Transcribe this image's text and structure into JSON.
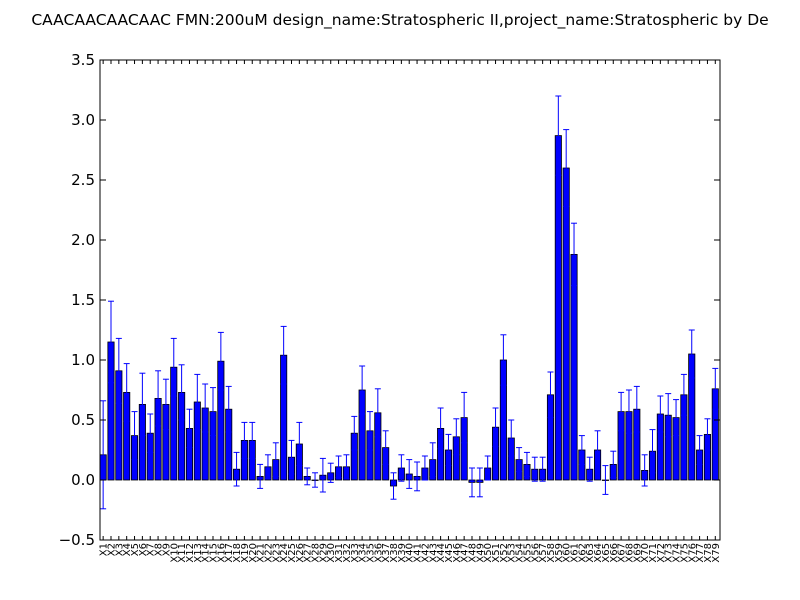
{
  "chart_data": {
    "type": "bar",
    "title": "CAACAACAACAAC  FMN:200uM  design_name:Stratospheric II,project_name:Stratospheric by De",
    "xlabel": "",
    "ylabel": "",
    "ylim": [
      -0.5,
      3.5
    ],
    "yticks": [
      "3.5",
      "3.0",
      "2.5",
      "2.0",
      "1.5",
      "1.0",
      "0.5",
      "0.0",
      "−0.5"
    ],
    "ytick_values": [
      3.5,
      3.0,
      2.5,
      2.0,
      1.5,
      1.0,
      0.5,
      0.0,
      -0.5
    ],
    "grid": false,
    "bar_color": "#0000ff",
    "error_color": "#0000ff",
    "categories": [
      "X1",
      "X2",
      "X3",
      "X4",
      "X5",
      "X6",
      "X7",
      "X8",
      "X9",
      "X10",
      "X11",
      "X12",
      "X13",
      "X14",
      "X15",
      "X16",
      "X17",
      "X18",
      "X19",
      "X20",
      "X21",
      "X22",
      "X23",
      "X24",
      "X25",
      "X26",
      "X27",
      "X28",
      "X29",
      "X30",
      "X31",
      "X32",
      "X33",
      "X34",
      "X35",
      "X36",
      "X37",
      "X38",
      "X39",
      "X40",
      "X41",
      "X42",
      "X43",
      "X44",
      "X45",
      "X46",
      "X47",
      "X48",
      "X49",
      "X50",
      "X51",
      "X52",
      "X53",
      "X54",
      "X55",
      "X56",
      "X57",
      "X58",
      "X59",
      "X60",
      "X61",
      "X62",
      "X63",
      "X64",
      "X65",
      "X66",
      "X67",
      "X68",
      "X69",
      "X70",
      "X71",
      "X72",
      "X73",
      "X74",
      "X75",
      "X76",
      "X77",
      "X78",
      "X79"
    ],
    "values": [
      0.21,
      1.15,
      0.91,
      0.73,
      0.37,
      0.63,
      0.39,
      0.68,
      0.63,
      0.94,
      0.73,
      0.43,
      0.65,
      0.6,
      0.57,
      0.99,
      0.59,
      0.09,
      0.33,
      0.33,
      0.03,
      0.11,
      0.17,
      1.04,
      0.19,
      0.3,
      0.03,
      0.0,
      0.04,
      0.06,
      0.11,
      0.11,
      0.39,
      0.75,
      0.41,
      0.56,
      0.27,
      -0.05,
      0.1,
      0.05,
      0.03,
      0.1,
      0.17,
      0.43,
      0.25,
      0.36,
      0.52,
      -0.02,
      -0.02,
      0.1,
      0.44,
      1.0,
      0.35,
      0.17,
      0.13,
      0.09,
      0.09,
      0.71,
      2.87,
      2.6,
      1.88,
      0.25,
      0.09,
      0.25,
      0.0,
      0.13,
      0.57,
      0.57,
      0.59,
      0.08,
      0.24,
      0.55,
      0.54,
      0.52,
      0.71,
      1.05,
      0.25,
      0.38,
      0.76
    ],
    "errors": [
      0.45,
      0.34,
      0.27,
      0.24,
      0.2,
      0.26,
      0.16,
      0.23,
      0.21,
      0.24,
      0.23,
      0.16,
      0.23,
      0.2,
      0.2,
      0.24,
      0.19,
      0.14,
      0.15,
      0.15,
      0.1,
      0.1,
      0.14,
      0.24,
      0.14,
      0.18,
      0.07,
      0.06,
      0.14,
      0.08,
      0.09,
      0.1,
      0.14,
      0.2,
      0.16,
      0.2,
      0.14,
      0.11,
      0.11,
      0.12,
      0.12,
      0.1,
      0.14,
      0.17,
      0.13,
      0.15,
      0.21,
      0.12,
      0.12,
      0.1,
      0.16,
      0.21,
      0.15,
      0.1,
      0.1,
      0.1,
      0.1,
      0.19,
      0.33,
      0.32,
      0.26,
      0.12,
      0.1,
      0.16,
      0.12,
      0.11,
      0.16,
      0.18,
      0.19,
      0.13,
      0.18,
      0.15,
      0.18,
      0.15,
      0.17,
      0.2,
      0.12,
      0.13,
      0.17
    ]
  }
}
